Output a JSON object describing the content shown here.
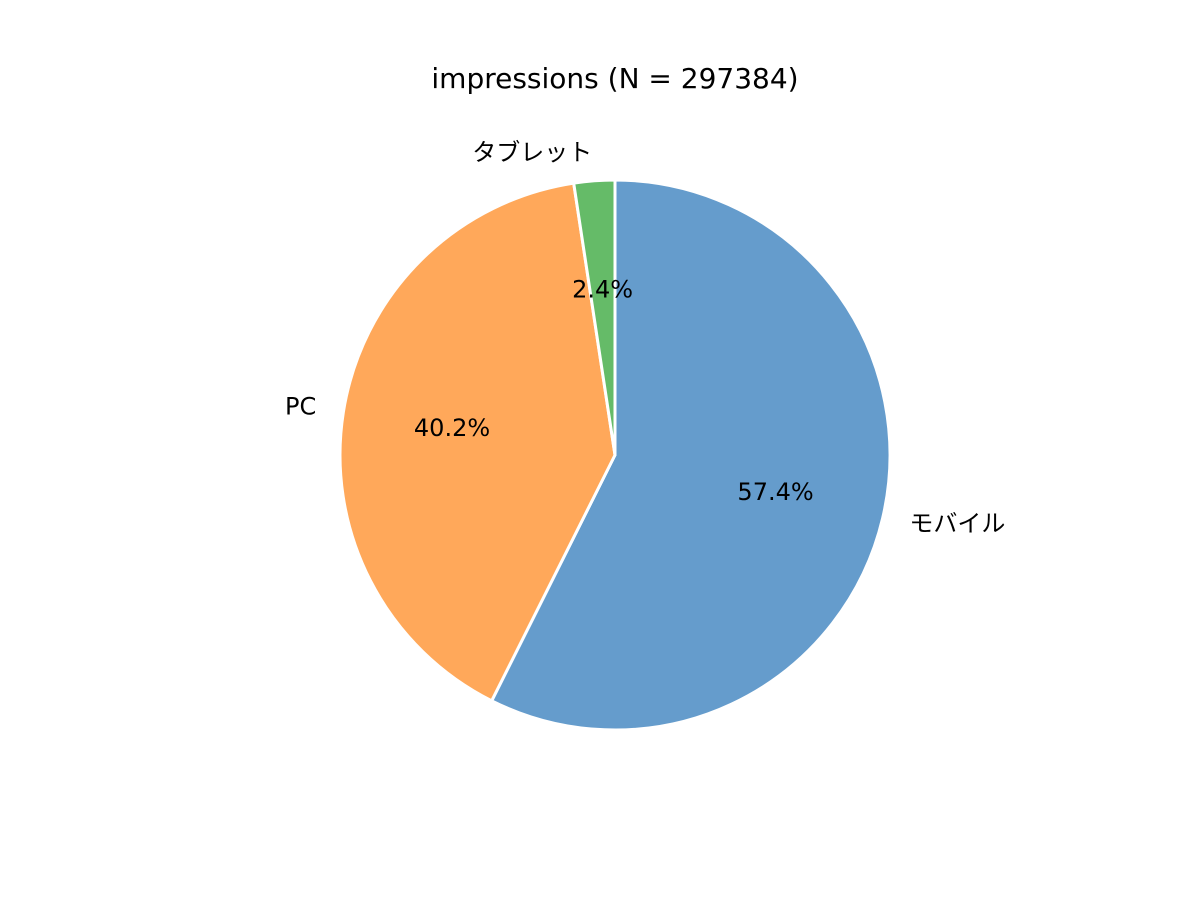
{
  "chart_data": {
    "type": "pie",
    "title": "impressions (N = 297384)",
    "start_angle_deg": 90,
    "direction": "clockwise",
    "slices": [
      {
        "label": "モバイル",
        "value": 57.4,
        "percent_label": "57.4%",
        "color": "#3a80be"
      },
      {
        "label": "PC",
        "value": 40.2,
        "percent_label": "40.2%",
        "color": "#ff8f2b"
      },
      {
        "label": "タブレット",
        "value": 2.4,
        "percent_label": "2.4%",
        "color": "#3aa83d"
      }
    ],
    "wedge_edge_color": "#ffffff",
    "wedge_alpha": 0.78
  }
}
